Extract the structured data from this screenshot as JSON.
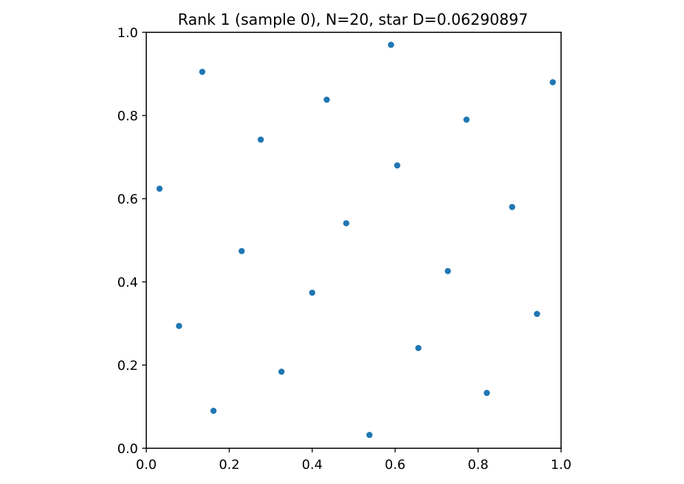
{
  "chart_data": {
    "type": "scatter",
    "title": "Rank 1 (sample 0), N=20, star D=0.06290897",
    "xlabel": "",
    "ylabel": "",
    "xlim": [
      0.0,
      1.0
    ],
    "ylim": [
      0.0,
      1.0
    ],
    "xticks": [
      "0.0",
      "0.2",
      "0.4",
      "0.6",
      "0.8",
      "1.0"
    ],
    "yticks": [
      "0.0",
      "0.2",
      "0.4",
      "0.6",
      "0.8",
      "1.0"
    ],
    "grid": false,
    "legend": "none",
    "marker_color": "#1f77b4",
    "points": [
      {
        "x": 0.59,
        "y": 0.97
      },
      {
        "x": 0.135,
        "y": 0.905
      },
      {
        "x": 0.98,
        "y": 0.88
      },
      {
        "x": 0.435,
        "y": 0.838
      },
      {
        "x": 0.772,
        "y": 0.79
      },
      {
        "x": 0.276,
        "y": 0.742
      },
      {
        "x": 0.605,
        "y": 0.68
      },
      {
        "x": 0.032,
        "y": 0.624
      },
      {
        "x": 0.882,
        "y": 0.58
      },
      {
        "x": 0.482,
        "y": 0.541
      },
      {
        "x": 0.23,
        "y": 0.474
      },
      {
        "x": 0.727,
        "y": 0.426
      },
      {
        "x": 0.4,
        "y": 0.374
      },
      {
        "x": 0.942,
        "y": 0.323
      },
      {
        "x": 0.079,
        "y": 0.294
      },
      {
        "x": 0.656,
        "y": 0.241
      },
      {
        "x": 0.326,
        "y": 0.184
      },
      {
        "x": 0.821,
        "y": 0.133
      },
      {
        "x": 0.162,
        "y": 0.09
      },
      {
        "x": 0.538,
        "y": 0.032
      }
    ]
  }
}
